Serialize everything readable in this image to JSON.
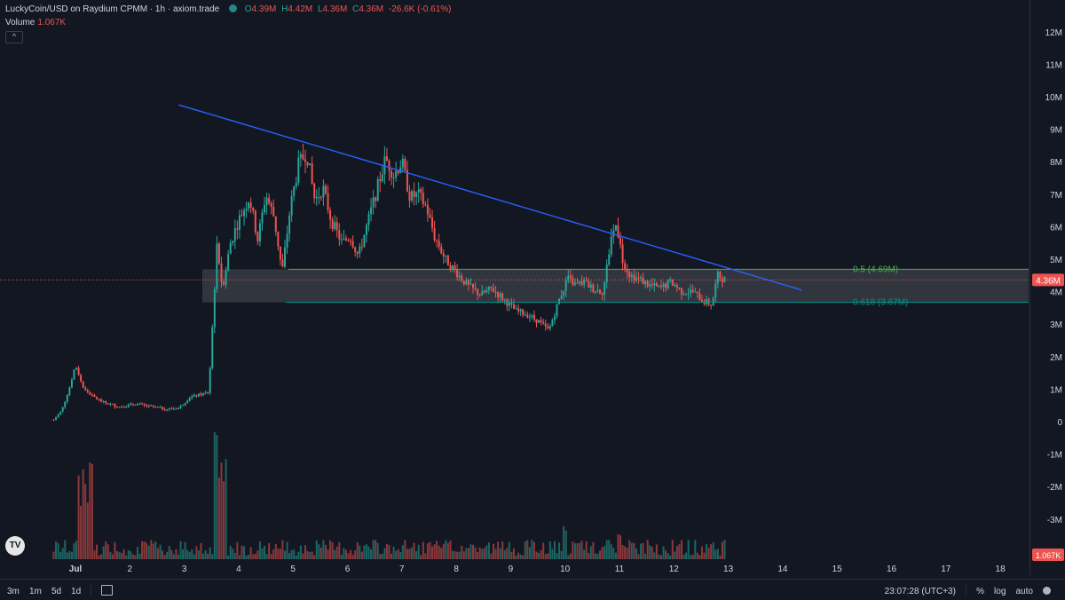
{
  "header": {
    "symbol": "LuckyCoin/USD on Raydium CPMM · 1h · axiom.trade",
    "ohlc": [
      {
        "k": "O",
        "v": "4.39M"
      },
      {
        "k": "H",
        "v": "4.42M"
      },
      {
        "k": "L",
        "v": "4.36M"
      },
      {
        "k": "C",
        "v": "4.36M"
      },
      {
        "k": "",
        "v": "-26.6K (-0.61%)"
      }
    ],
    "volume_label": "Volume",
    "volume_value": "1.067K",
    "collapse_glyph": "^"
  },
  "colors": {
    "background": "#131722",
    "up": "#26a69a",
    "down": "#ef5350",
    "trendline": "#2962ff",
    "fib_05": "#4caf50",
    "fib_0618": "#009688"
  },
  "chart_data": {
    "type": "candlestick",
    "interval": "1h",
    "price_axis_ticks": [
      "12M",
      "11M",
      "10M",
      "9M",
      "8M",
      "7M",
      "6M",
      "5M",
      "4M",
      "3M",
      "2M",
      "1M",
      "0",
      "-1M",
      "-2M",
      "-3M"
    ],
    "price_axis_values": [
      12,
      11,
      10,
      9,
      8,
      7,
      6,
      5,
      4,
      3,
      2,
      1,
      0,
      -1,
      -2,
      -3
    ],
    "time_axis_ticks": [
      {
        "label": "Jul",
        "day": 1
      },
      {
        "label": "2",
        "day": 2
      },
      {
        "label": "3",
        "day": 3
      },
      {
        "label": "4",
        "day": 4
      },
      {
        "label": "5",
        "day": 5
      },
      {
        "label": "6",
        "day": 6
      },
      {
        "label": "7",
        "day": 7
      },
      {
        "label": "8",
        "day": 8
      },
      {
        "label": "9",
        "day": 9
      },
      {
        "label": "10",
        "day": 10
      },
      {
        "label": "11",
        "day": 11
      },
      {
        "label": "12",
        "day": 12
      },
      {
        "label": "13",
        "day": 13
      },
      {
        "label": "14",
        "day": 14
      },
      {
        "label": "15",
        "day": 15
      },
      {
        "label": "16",
        "day": 16
      },
      {
        "label": "17",
        "day": 17
      },
      {
        "label": "18",
        "day": 18
      }
    ],
    "price_path": [
      [
        0.6,
        0.05
      ],
      [
        0.75,
        0.35
      ],
      [
        0.9,
        1.1
      ],
      [
        1.0,
        1.75
      ],
      [
        1.15,
        1.0
      ],
      [
        1.3,
        0.8
      ],
      [
        1.5,
        0.6
      ],
      [
        1.8,
        0.45
      ],
      [
        2.1,
        0.55
      ],
      [
        2.4,
        0.45
      ],
      [
        2.7,
        0.38
      ],
      [
        2.9,
        0.42
      ],
      [
        3.1,
        0.75
      ],
      [
        3.45,
        0.9
      ],
      [
        3.55,
        3.9
      ],
      [
        3.6,
        5.5
      ],
      [
        3.7,
        4.1
      ],
      [
        3.85,
        5.5
      ],
      [
        4.0,
        6.2
      ],
      [
        4.2,
        6.9
      ],
      [
        4.35,
        5.6
      ],
      [
        4.5,
        7.0
      ],
      [
        4.65,
        6.3
      ],
      [
        4.8,
        4.6
      ],
      [
        4.95,
        6.6
      ],
      [
        5.1,
        7.9
      ],
      [
        5.25,
        8.3
      ],
      [
        5.4,
        6.8
      ],
      [
        5.55,
        7.2
      ],
      [
        5.7,
        6.2
      ],
      [
        5.9,
        5.5
      ],
      [
        6.05,
        5.7
      ],
      [
        6.2,
        5.1
      ],
      [
        6.35,
        6.0
      ],
      [
        6.55,
        7.2
      ],
      [
        6.7,
        8.1
      ],
      [
        6.85,
        7.6
      ],
      [
        7.0,
        8.0
      ],
      [
        7.15,
        6.9
      ],
      [
        7.3,
        7.0
      ],
      [
        7.45,
        6.6
      ],
      [
        7.6,
        5.7
      ],
      [
        7.8,
        5.0
      ],
      [
        8.0,
        4.6
      ],
      [
        8.2,
        4.2
      ],
      [
        8.45,
        3.9
      ],
      [
        8.65,
        4.1
      ],
      [
        8.85,
        3.8
      ],
      [
        9.1,
        3.4
      ],
      [
        9.3,
        3.3
      ],
      [
        9.5,
        3.1
      ],
      [
        9.7,
        2.8
      ],
      [
        9.9,
        3.8
      ],
      [
        10.05,
        4.4
      ],
      [
        10.2,
        4.2
      ],
      [
        10.35,
        4.3
      ],
      [
        10.5,
        4.1
      ],
      [
        10.7,
        4.0
      ],
      [
        10.85,
        5.7
      ],
      [
        10.95,
        6.1
      ],
      [
        11.05,
        5.0
      ],
      [
        11.2,
        4.5
      ],
      [
        11.35,
        4.4
      ],
      [
        11.55,
        4.2
      ],
      [
        11.75,
        4.1
      ],
      [
        11.95,
        4.3
      ],
      [
        12.15,
        4.0
      ],
      [
        12.35,
        4.0
      ],
      [
        12.55,
        3.7
      ],
      [
        12.7,
        3.6
      ],
      [
        12.8,
        4.5
      ],
      [
        12.95,
        4.36
      ]
    ],
    "trendline": {
      "from": [
        2.9,
        9.75
      ],
      "to": [
        14.35,
        4.05
      ]
    },
    "fib_levels": [
      {
        "level": "0.5",
        "label": "0.5 (4.69M)",
        "value": 4.69
      },
      {
        "level": "0.618",
        "label": "0.618 (3.67M)",
        "value": 3.67
      }
    ],
    "zone_range": [
      3.67,
      4.69
    ],
    "current_price": {
      "label": "4.36M",
      "value": 4.36
    },
    "current_volume": {
      "label": "1.067K"
    },
    "volume_max_seen": "large spikes near Jul 1 and Jul 3"
  },
  "bottom_bar": {
    "ranges": [
      "3m",
      "1m",
      "5d",
      "1d"
    ],
    "time": "23:07:28 (UTC+3)",
    "toggles": [
      "%",
      "log",
      "auto"
    ]
  }
}
